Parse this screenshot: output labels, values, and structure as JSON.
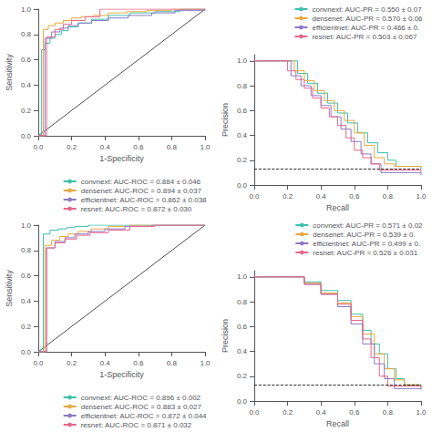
{
  "chart_data": [
    {
      "type": "line",
      "xlabel": "1-Specificity",
      "ylabel": "Sensitivity",
      "xlim": [
        0,
        1
      ],
      "ylim": [
        0,
        1
      ],
      "xticks": [
        {
          "value": 0,
          "label": "0.0"
        },
        0.2,
        0.4,
        0.6,
        0.8,
        {
          "value": 1,
          "label": "1.0"
        }
      ],
      "yticks": [
        {
          "value": 0,
          "label": "0.0"
        },
        0.2,
        0.4,
        0.6,
        0.8,
        {
          "value": 1,
          "label": "1.0"
        }
      ],
      "grid": false,
      "legend": "lower right",
      "series": [
        {
          "name": "convnext: AUC-ROC = 0.884 ± 0.046",
          "color": "#3dbfac",
          "type": "step",
          "x": [
            0,
            0.02,
            0.04,
            0.07,
            0.1,
            0.14,
            0.18,
            0.24,
            0.32,
            0.42,
            0.55,
            0.7,
            0.85,
            1.0
          ],
          "values": [
            0,
            0.68,
            0.73,
            0.77,
            0.8,
            0.83,
            0.86,
            0.89,
            0.92,
            0.95,
            0.97,
            0.98,
            1.0,
            1.0
          ]
        },
        {
          "name": "densenet: AUC-ROC = 0.894 ± 0.037",
          "color": "#e8a83e",
          "type": "step",
          "x": [
            0,
            0.03,
            0.06,
            0.1,
            0.15,
            0.2,
            0.26,
            0.33,
            0.42,
            0.53,
            0.65,
            0.8,
            0.92,
            1.0
          ],
          "values": [
            0,
            0.84,
            0.87,
            0.89,
            0.91,
            0.93,
            0.94,
            0.95,
            0.97,
            0.98,
            0.99,
            1.0,
            1.0,
            1.0
          ]
        },
        {
          "name": "efficientnet: AUC-ROC = 0.862 ± 0.038",
          "color": "#8b78c8",
          "type": "step",
          "x": [
            0,
            0.04,
            0.08,
            0.13,
            0.18,
            0.24,
            0.32,
            0.42,
            0.54,
            0.68,
            0.82,
            1.0
          ],
          "values": [
            0,
            0.77,
            0.82,
            0.85,
            0.87,
            0.89,
            0.91,
            0.93,
            0.95,
            0.97,
            0.99,
            1.0
          ]
        },
        {
          "name": "resnet: AUC-ROC = 0.872 ± 0.030",
          "color": "#e8668a",
          "type": "step",
          "x": [
            0,
            0.05,
            0.1,
            0.15,
            0.2,
            0.28,
            0.37,
            0.5,
            0.65,
            0.8,
            1.0
          ],
          "values": [
            0,
            0.78,
            0.84,
            0.88,
            0.91,
            0.94,
            1.0,
            1.0,
            1.0,
            1.0,
            1.0
          ]
        },
        {
          "type": "line",
          "color": "#000000",
          "line_style": "solid",
          "x": [
            0,
            1
          ],
          "values": [
            0,
            1
          ]
        }
      ]
    },
    {
      "type": "line",
      "xlabel": "Recall",
      "ylabel": "Precision",
      "xlim": [
        0,
        1
      ],
      "ylim": [
        0,
        1.05
      ],
      "xticks": [
        {
          "value": 0,
          "label": "0.0"
        },
        0.2,
        0.4,
        0.6,
        0.8,
        {
          "value": 1,
          "label": "1.0"
        }
      ],
      "yticks": [
        {
          "value": 0,
          "label": "0.0"
        },
        0.2,
        0.4,
        0.6,
        0.8,
        {
          "value": 1,
          "label": "1.0"
        }
      ],
      "grid": false,
      "legend": "upper right",
      "baseline": 0.13,
      "series": [
        {
          "name": "convnext: AUC-PR = 0.550 ± 0.07",
          "color": "#3dbfac",
          "type": "step",
          "x": [
            0,
            0.2,
            0.26,
            0.32,
            0.38,
            0.44,
            0.5,
            0.56,
            0.62,
            0.68,
            0.74,
            0.8,
            0.85,
            1.0
          ],
          "values": [
            1.0,
            1.0,
            0.9,
            0.82,
            0.74,
            0.66,
            0.58,
            0.5,
            0.42,
            0.34,
            0.26,
            0.2,
            0.15,
            0.13
          ]
        },
        {
          "name": "densenet: AUC-PR = 0.570 ± 0.06",
          "color": "#e8a83e",
          "type": "step",
          "x": [
            0,
            0.18,
            0.24,
            0.3,
            0.36,
            0.42,
            0.48,
            0.54,
            0.6,
            0.66,
            0.72,
            0.78,
            0.84,
            1.0
          ],
          "values": [
            1.0,
            1.0,
            0.92,
            0.84,
            0.76,
            0.68,
            0.6,
            0.52,
            0.42,
            0.32,
            0.22,
            0.17,
            0.15,
            0.14
          ]
        },
        {
          "name": "efficientnet: AUC-PR = 0.466 ± 0.",
          "color": "#8b78c8",
          "type": "step",
          "x": [
            0,
            0.15,
            0.22,
            0.28,
            0.34,
            0.4,
            0.46,
            0.52,
            0.58,
            0.64,
            0.7,
            0.76,
            1.0
          ],
          "values": [
            1.0,
            1.0,
            0.88,
            0.8,
            0.72,
            0.64,
            0.55,
            0.45,
            0.35,
            0.25,
            0.17,
            0.1,
            0.08
          ]
        },
        {
          "name": "resnet: AUC-PR = 0.503 ± 0.067",
          "color": "#e8668a",
          "type": "step",
          "x": [
            0,
            0.15,
            0.2,
            0.25,
            0.3,
            0.35,
            0.4,
            0.45,
            0.5,
            0.55,
            0.6,
            0.65,
            0.7,
            0.75,
            1.0
          ],
          "values": [
            1.0,
            1.0,
            0.92,
            0.85,
            0.78,
            0.7,
            0.62,
            0.55,
            0.48,
            0.38,
            0.28,
            0.22,
            0.17,
            0.12,
            0.1
          ]
        }
      ]
    },
    {
      "type": "line",
      "xlabel": "1-Specificity",
      "ylabel": "Sensitivity",
      "xlim": [
        0,
        1
      ],
      "ylim": [
        0,
        1
      ],
      "xticks": [
        {
          "value": 0,
          "label": "0.0"
        },
        0.2,
        0.4,
        0.6,
        0.8,
        {
          "value": 1,
          "label": "1.0"
        }
      ],
      "yticks": [
        {
          "value": 0,
          "label": "0.0"
        },
        0.2,
        0.4,
        0.6,
        0.8,
        {
          "value": 1,
          "label": "1.0"
        }
      ],
      "grid": false,
      "legend": "lower right",
      "series": [
        {
          "name": "convnext: AUC-ROC = 0.896 ± 0.002",
          "color": "#3dbfac",
          "type": "step",
          "x": [
            0,
            0.03,
            0.07,
            0.12,
            0.17,
            0.22,
            0.3,
            0.42,
            0.58,
            0.75,
            1.0
          ],
          "values": [
            0,
            0.93,
            0.96,
            0.97,
            0.98,
            0.99,
            1.0,
            1.0,
            1.0,
            1.0,
            1.0
          ]
        },
        {
          "name": "densenet: AUC-ROC = 0.883 ± 0.027",
          "color": "#e8a83e",
          "type": "step",
          "x": [
            0,
            0.04,
            0.08,
            0.13,
            0.18,
            0.24,
            0.32,
            0.42,
            0.55,
            0.72,
            1.0
          ],
          "values": [
            0,
            0.84,
            0.88,
            0.91,
            0.93,
            0.95,
            0.97,
            0.99,
            1.0,
            1.0,
            1.0
          ]
        },
        {
          "name": "efficientnet: AUC-ROC = 0.872 ± 0.044",
          "color": "#8b78c8",
          "type": "step",
          "x": [
            0,
            0.05,
            0.1,
            0.16,
            0.22,
            0.3,
            0.4,
            0.52,
            0.68,
            0.85,
            1.0
          ],
          "values": [
            0,
            0.82,
            0.87,
            0.9,
            0.93,
            0.95,
            0.97,
            0.99,
            1.0,
            1.0,
            1.0
          ]
        },
        {
          "name": "resnet: AUC-ROC = 0.871 ± 0.032",
          "color": "#e8668a",
          "type": "step",
          "x": [
            0,
            0.05,
            0.1,
            0.16,
            0.23,
            0.31,
            0.42,
            0.55,
            0.7,
            0.85,
            1.0
          ],
          "values": [
            0,
            0.82,
            0.86,
            0.89,
            0.92,
            0.94,
            0.96,
            0.99,
            1.0,
            1.0,
            1.0
          ]
        },
        {
          "type": "line",
          "color": "#000000",
          "line_style": "solid",
          "x": [
            0,
            1
          ],
          "values": [
            0,
            1
          ]
        }
      ]
    },
    {
      "type": "line",
      "xlabel": "Recall",
      "ylabel": "Precision",
      "xlim": [
        0,
        1
      ],
      "ylim": [
        0,
        1.05
      ],
      "xticks": [
        {
          "value": 0,
          "label": "0.0"
        },
        0.2,
        0.4,
        0.6,
        0.8,
        {
          "value": 1,
          "label": "1.0"
        }
      ],
      "yticks": [
        {
          "value": 0,
          "label": "0.0"
        },
        0.2,
        0.4,
        0.6,
        0.8,
        {
          "value": 1,
          "label": "1.0"
        }
      ],
      "grid": false,
      "legend": "upper right",
      "baseline": 0.13,
      "series": [
        {
          "name": "convnext: AUC-PR = 0.571 ± 0.02",
          "color": "#3dbfac",
          "type": "step",
          "x": [
            0,
            0.1,
            0.2,
            0.3,
            0.4,
            0.5,
            0.58,
            0.65,
            0.7,
            0.75,
            0.8,
            0.85,
            0.9,
            1.0
          ],
          "values": [
            1.0,
            1.0,
            1.0,
            0.96,
            0.89,
            0.81,
            0.7,
            0.57,
            0.46,
            0.38,
            0.26,
            0.18,
            0.13,
            0.11
          ]
        },
        {
          "name": "densenet: AUC-PR = 0.539 ± 0.",
          "color": "#e8a83e",
          "type": "step",
          "x": [
            0,
            0.1,
            0.2,
            0.3,
            0.4,
            0.5,
            0.58,
            0.65,
            0.72,
            0.78,
            0.84,
            0.9,
            1.0
          ],
          "values": [
            1.0,
            1.0,
            1.0,
            0.95,
            0.87,
            0.79,
            0.68,
            0.54,
            0.38,
            0.26,
            0.17,
            0.13,
            0.11
          ]
        },
        {
          "name": "efficientnet: AUC-PR = 0.499 ± 0.",
          "color": "#8b78c8",
          "type": "step",
          "x": [
            0,
            0.1,
            0.2,
            0.3,
            0.4,
            0.5,
            0.58,
            0.65,
            0.72,
            0.78,
            0.84,
            1.0
          ],
          "values": [
            1.0,
            1.0,
            1.0,
            0.94,
            0.86,
            0.76,
            0.62,
            0.46,
            0.3,
            0.18,
            0.1,
            0.09
          ]
        },
        {
          "name": "resnet: AUC-PR = 0.526 ± 0.031",
          "color": "#e8668a",
          "type": "step",
          "x": [
            0,
            0.1,
            0.2,
            0.3,
            0.4,
            0.5,
            0.58,
            0.65,
            0.7,
            0.75,
            0.8,
            1.0
          ],
          "values": [
            1.0,
            1.0,
            1.0,
            0.94,
            0.86,
            0.78,
            0.65,
            0.5,
            0.35,
            0.2,
            0.12,
            0.1
          ]
        }
      ]
    }
  ]
}
